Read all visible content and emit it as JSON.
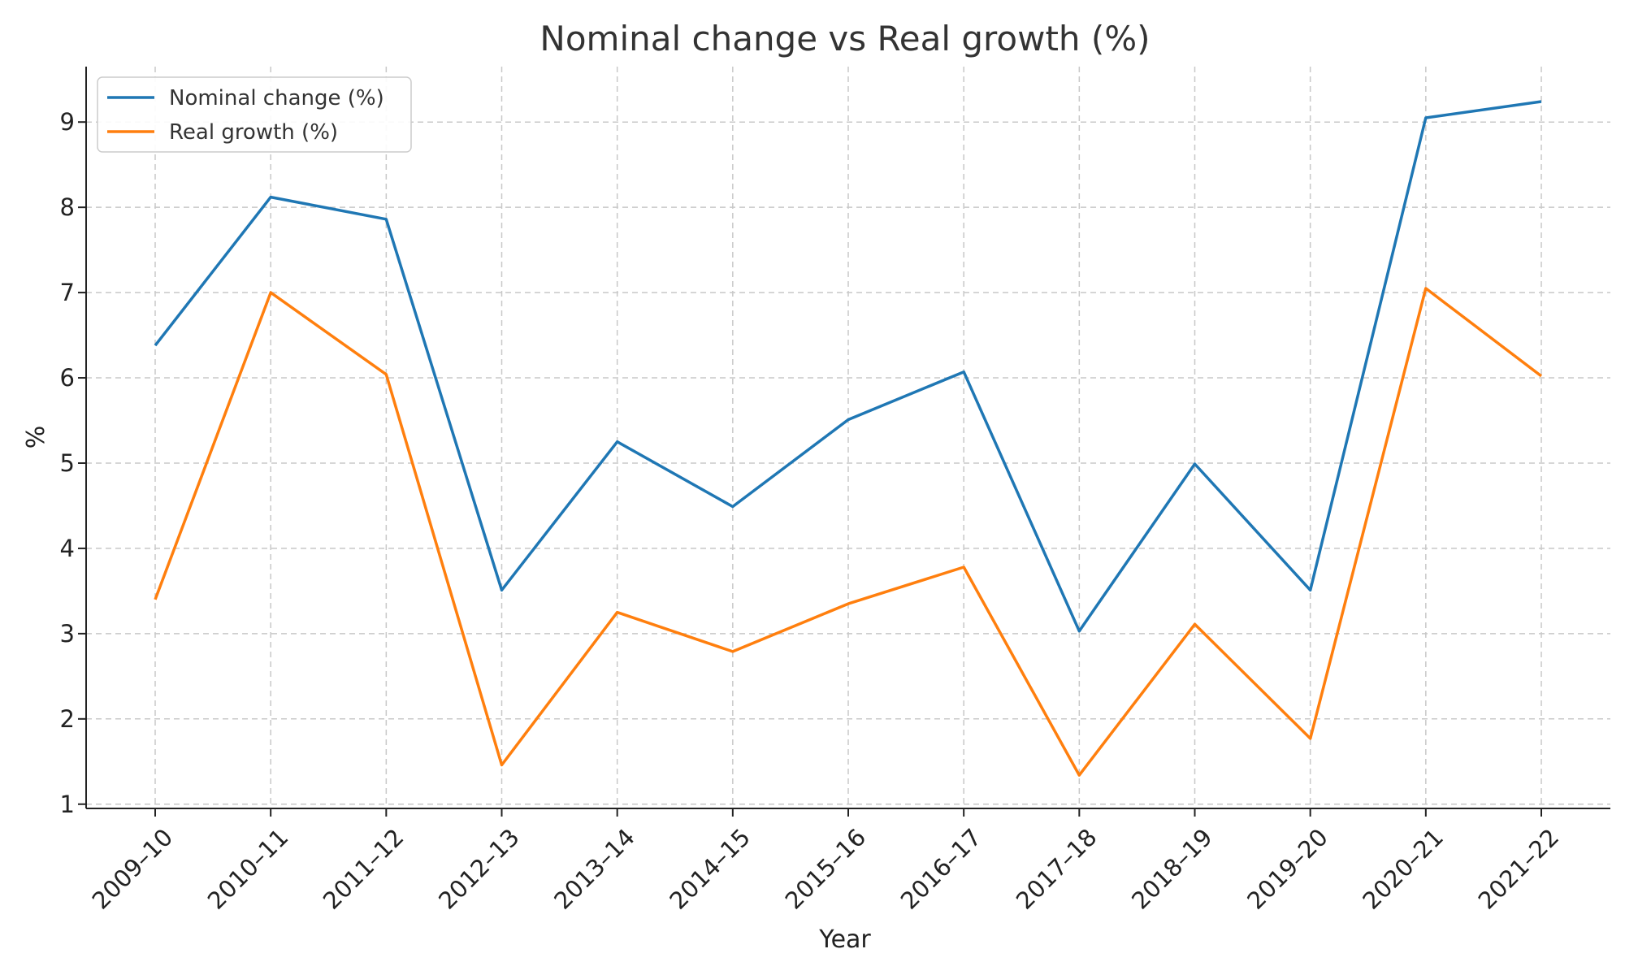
{
  "chart_data": {
    "type": "line",
    "title": "Nominal change vs Real growth (%)",
    "xlabel": "Year",
    "ylabel": "%",
    "categories": [
      "2009–10",
      "2010–11",
      "2011–12",
      "2012–13",
      "2013–14",
      "2014–15",
      "2015–16",
      "2016–17",
      "2017–18",
      "2018–19",
      "2019–20",
      "2020–21",
      "2021–22"
    ],
    "yticks": [
      "1",
      "2",
      "3",
      "4",
      "5",
      "6",
      "7",
      "8",
      "9"
    ],
    "ylim": [
      0.95,
      9.65
    ],
    "grid": true,
    "legend_position": "top-left",
    "series": [
      {
        "name": "Nominal change (%)",
        "color": "#1f77b4",
        "values": [
          6.38,
          8.12,
          7.86,
          3.51,
          5.25,
          4.49,
          5.51,
          6.07,
          3.03,
          4.99,
          3.51,
          9.05,
          9.24
        ]
      },
      {
        "name": "Real growth (%)",
        "color": "#ff7f0e",
        "values": [
          3.4,
          7.0,
          6.04,
          1.46,
          3.25,
          2.79,
          3.35,
          3.78,
          1.34,
          3.11,
          1.77,
          7.05,
          6.02
        ]
      }
    ]
  }
}
